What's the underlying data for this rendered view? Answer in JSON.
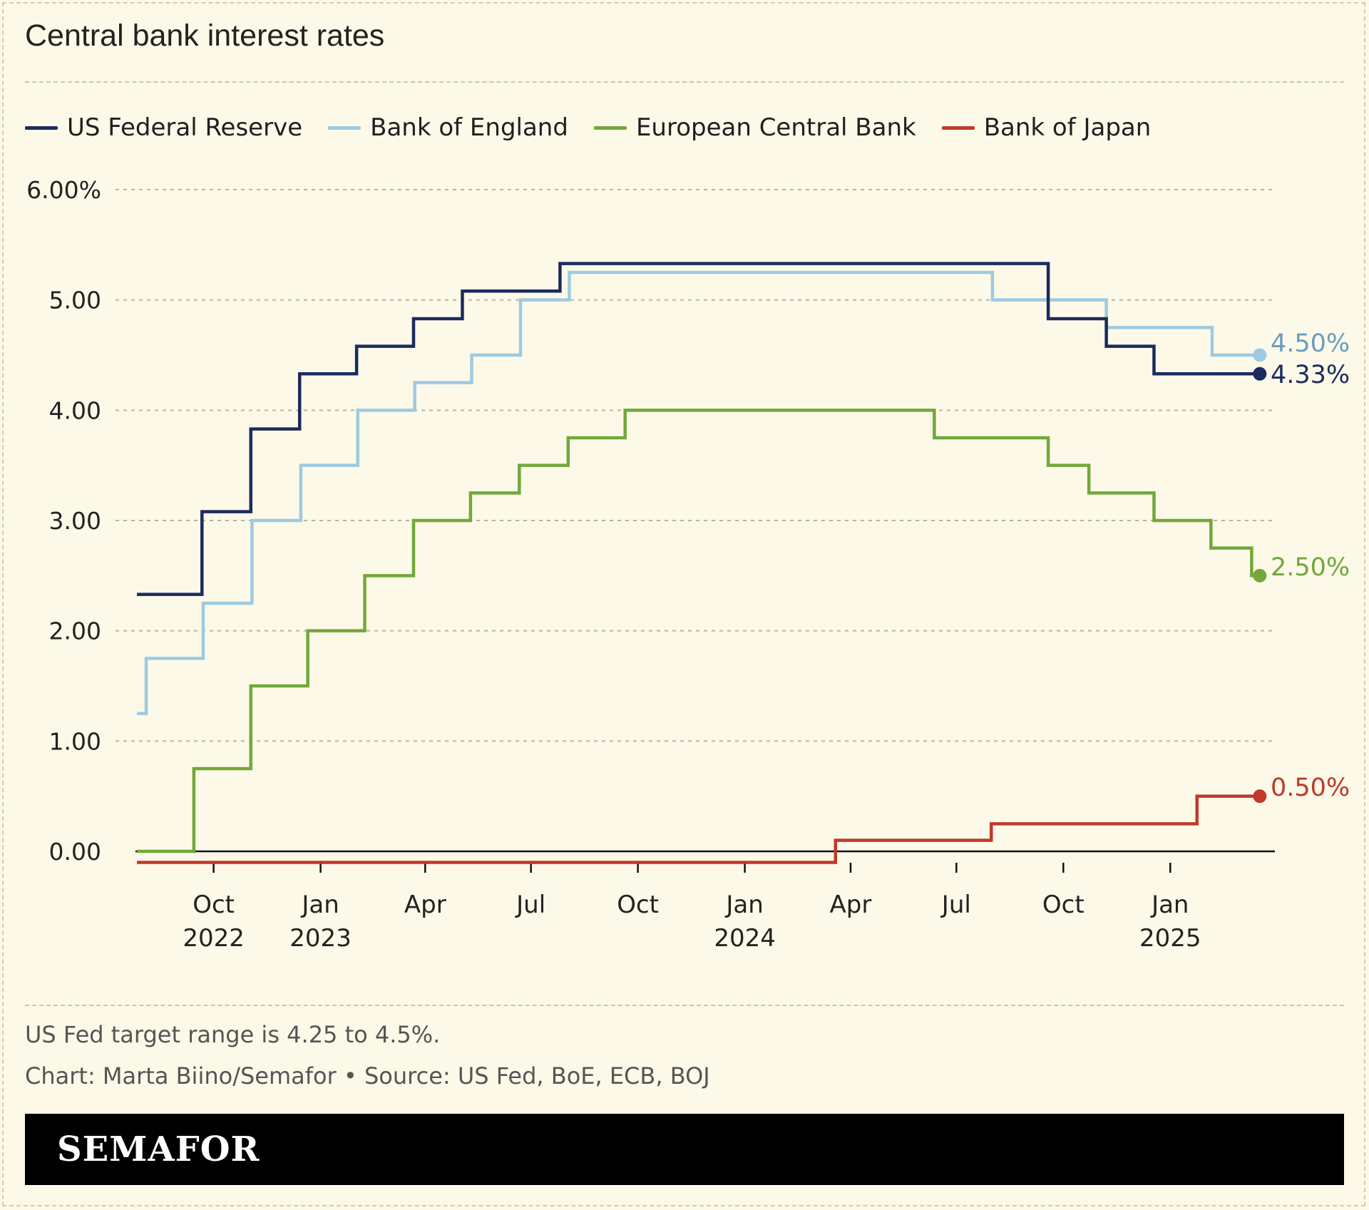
{
  "title": "Central bank interest rates",
  "note": "US Fed target range is 4.25 to 4.5%.",
  "credit": "Chart: Marta Biino/Semafor • Source: US Fed, BoE, ECB, BOJ",
  "brand": "SEMAFOR",
  "chart_data": {
    "type": "line",
    "step": true,
    "title": "Central bank interest rates",
    "xlabel": "",
    "ylabel": "",
    "ylim": [
      0,
      6
    ],
    "xlim": [
      "2022-07-27",
      "2025-04-01"
    ],
    "y_ticks": [
      {
        "value": 6,
        "label": "6.00%"
      },
      {
        "value": 5,
        "label": "5.00"
      },
      {
        "value": 4,
        "label": "4.00"
      },
      {
        "value": 3,
        "label": "3.00"
      },
      {
        "value": 2,
        "label": "2.00"
      },
      {
        "value": 1,
        "label": "1.00"
      },
      {
        "value": 0,
        "label": "0.00"
      }
    ],
    "x_ticks": [
      {
        "date": "2022-10-01",
        "label": "Oct",
        "year": "2022"
      },
      {
        "date": "2023-01-01",
        "label": "Jan",
        "year": "2023"
      },
      {
        "date": "2023-04-01",
        "label": "Apr",
        "year": ""
      },
      {
        "date": "2023-07-01",
        "label": "Jul",
        "year": ""
      },
      {
        "date": "2023-10-01",
        "label": "Oct",
        "year": ""
      },
      {
        "date": "2024-01-01",
        "label": "Jan",
        "year": "2024"
      },
      {
        "date": "2024-04-01",
        "label": "Apr",
        "year": ""
      },
      {
        "date": "2024-07-01",
        "label": "Jul",
        "year": ""
      },
      {
        "date": "2024-10-01",
        "label": "Oct",
        "year": ""
      },
      {
        "date": "2025-01-01",
        "label": "Jan",
        "year": "2025"
      }
    ],
    "grid": true,
    "legend": "top-left",
    "series": [
      {
        "name": "US Federal Reserve",
        "color": "#1c2b5e",
        "end_label": "4.33%",
        "points": [
          [
            "2022-07-27",
            2.33
          ],
          [
            "2022-09-21",
            3.08
          ],
          [
            "2022-11-02",
            3.83
          ],
          [
            "2022-12-14",
            4.33
          ],
          [
            "2023-02-01",
            4.58
          ],
          [
            "2023-03-22",
            4.83
          ],
          [
            "2023-05-03",
            5.08
          ],
          [
            "2023-07-26",
            5.33
          ],
          [
            "2024-09-18",
            4.83
          ],
          [
            "2024-11-07",
            4.58
          ],
          [
            "2024-12-18",
            4.33
          ],
          [
            "2025-03-19",
            4.33
          ]
        ]
      },
      {
        "name": "Bank of England",
        "color": "#9ecae1",
        "end_label": "4.50%",
        "points": [
          [
            "2022-07-27",
            1.25
          ],
          [
            "2022-08-04",
            1.75
          ],
          [
            "2022-09-22",
            2.25
          ],
          [
            "2022-11-03",
            3.0
          ],
          [
            "2022-12-15",
            3.5
          ],
          [
            "2023-02-02",
            4.0
          ],
          [
            "2023-03-23",
            4.25
          ],
          [
            "2023-05-11",
            4.5
          ],
          [
            "2023-06-22",
            5.0
          ],
          [
            "2023-08-03",
            5.25
          ],
          [
            "2024-08-01",
            5.0
          ],
          [
            "2024-11-07",
            4.75
          ],
          [
            "2025-02-06",
            4.5
          ],
          [
            "2025-03-19",
            4.5
          ]
        ]
      },
      {
        "name": "European Central Bank",
        "color": "#72a83a",
        "end_label": "2.50%",
        "points": [
          [
            "2022-07-27",
            0.0
          ],
          [
            "2022-09-14",
            0.75
          ],
          [
            "2022-11-02",
            1.5
          ],
          [
            "2022-12-21",
            2.0
          ],
          [
            "2023-02-08",
            2.5
          ],
          [
            "2023-03-22",
            3.0
          ],
          [
            "2023-05-10",
            3.25
          ],
          [
            "2023-06-21",
            3.5
          ],
          [
            "2023-08-02",
            3.75
          ],
          [
            "2023-09-20",
            4.0
          ],
          [
            "2024-06-12",
            3.75
          ],
          [
            "2024-09-18",
            3.5
          ],
          [
            "2024-10-23",
            3.25
          ],
          [
            "2024-12-18",
            3.0
          ],
          [
            "2025-02-05",
            2.75
          ],
          [
            "2025-03-12",
            2.5
          ],
          [
            "2025-03-19",
            2.5
          ]
        ]
      },
      {
        "name": "Bank of Japan",
        "color": "#c0392b",
        "end_label": "0.50%",
        "points": [
          [
            "2022-07-27",
            -0.1
          ],
          [
            "2024-03-19",
            0.1
          ],
          [
            "2024-07-31",
            0.25
          ],
          [
            "2025-01-24",
            0.5
          ],
          [
            "2025-03-19",
            0.5
          ]
        ]
      }
    ]
  }
}
